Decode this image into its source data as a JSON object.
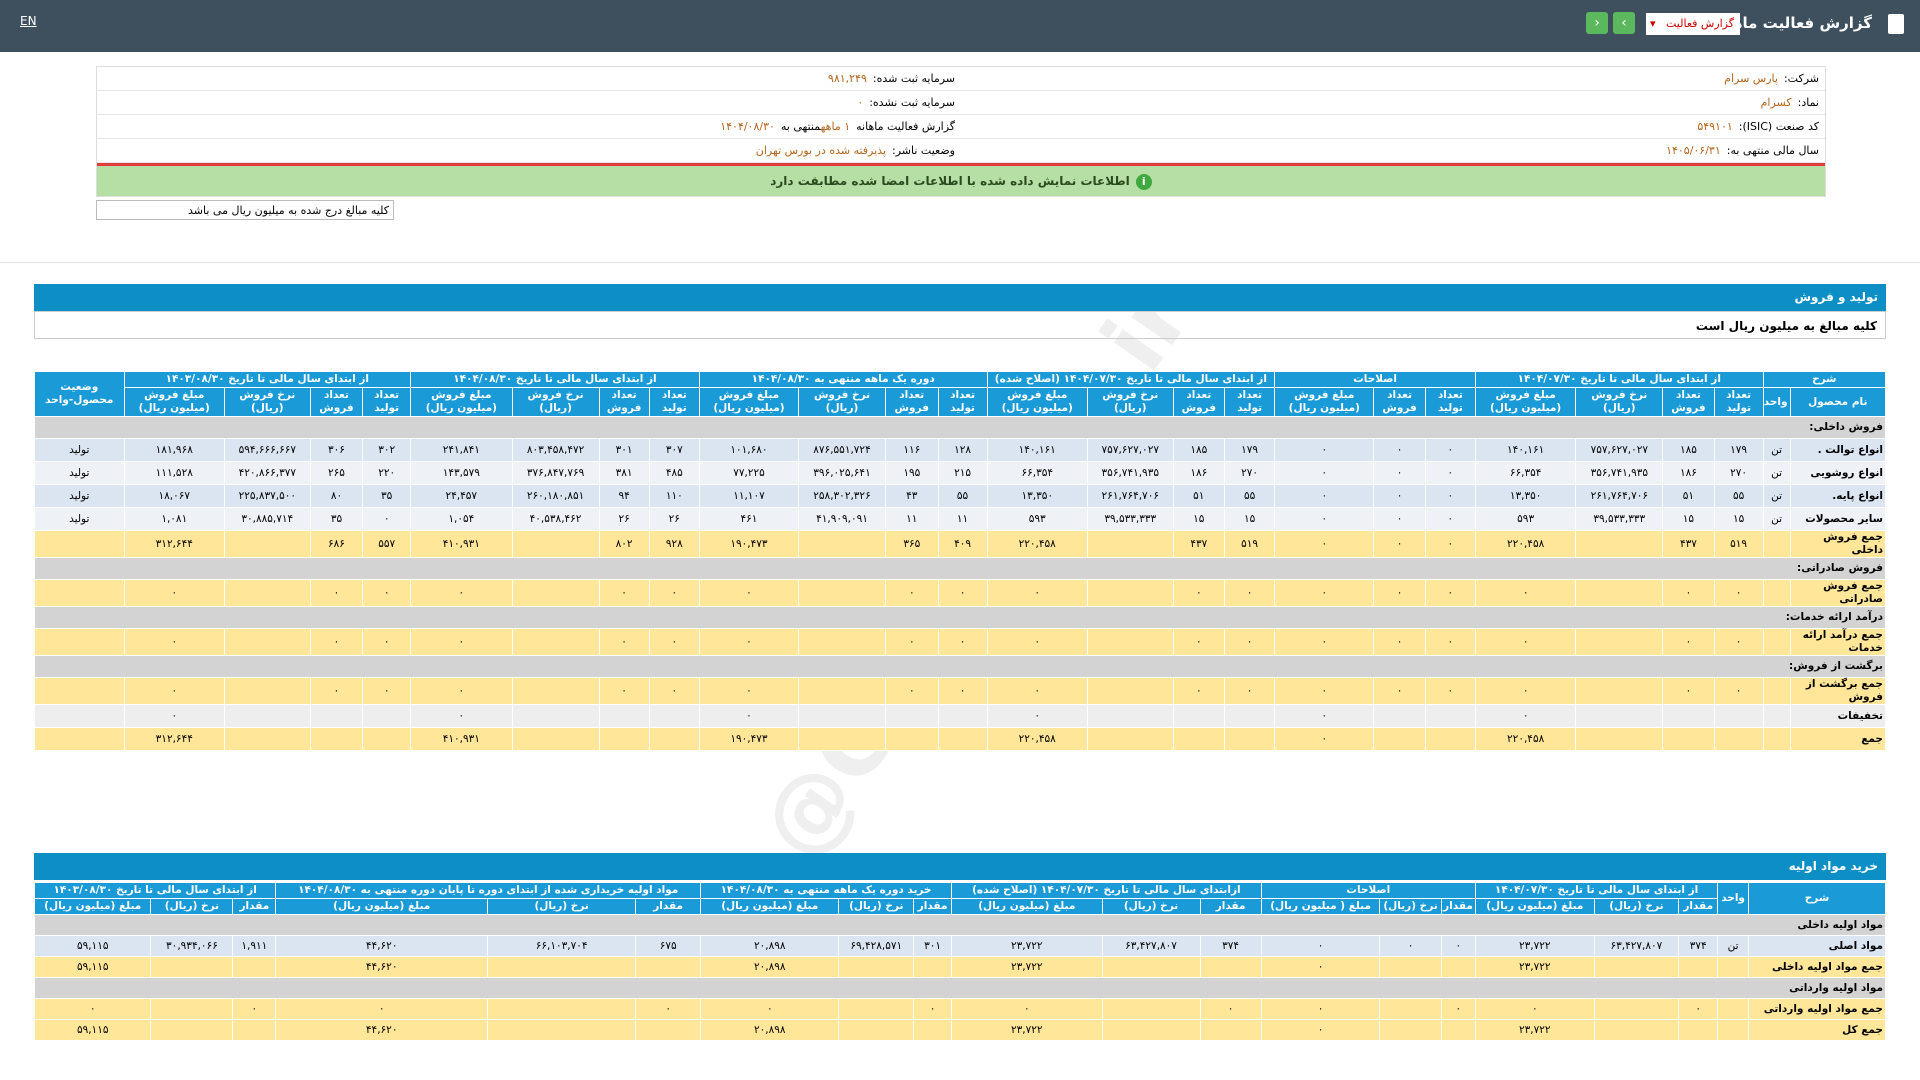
{
  "topbar": {
    "title": "گزارش فعالیت ماهانه",
    "dropdown": "گزارش فعالیت",
    "language": "EN"
  },
  "info": {
    "right": [
      {
        "label": "شرکت:",
        "value": "پارس سرام"
      },
      {
        "label": "نماد:",
        "value": "کسرام"
      },
      {
        "label": "کد صنعت (ISIC):",
        "value": "۵۴۹۱۰۱"
      },
      {
        "label": "سال مالی منتهی به:",
        "value": "۱۴۰۵/۰۶/۳۱"
      }
    ],
    "left": [
      {
        "label": "سرمایه ثبت شده:",
        "value": "۹۸۱,۲۴۹"
      },
      {
        "label": "سرمایه ثبت نشده:",
        "value": "۰"
      },
      {
        "label": "گزارش فعالیت ماهانه",
        "value": "۱ ماهه",
        "suffix": "منتهی به",
        "date": "۱۴۰۴/۰۸/۳۰"
      },
      {
        "label": "وضعیت ناشر:",
        "value": "پذیرفته شده در بورس تهران"
      }
    ]
  },
  "notice": "اطلاعات نمایش داده شده با اطلاعات امضا شده مطابقت دارد",
  "amount_note": "کلیه مبالغ درج شده به میلیون ریال می باشد",
  "watermark": "@Codal360.ir",
  "production": {
    "title": "تولید و فروش",
    "subtitle": "کلیه مبالغ به میلیون ریال است",
    "table": {
      "groups": [
        {
          "title": "شرح",
          "columns": [
            "نام محصول",
            "واحد"
          ]
        },
        {
          "title": "از ابتدای سال مالی تا تاریخ ۱۴۰۴/۰۷/۳۰",
          "columns": [
            "تعداد تولید",
            "تعداد فروش",
            "نرخ فروش (ریال)",
            "مبلغ فروش (میلیون ریال)"
          ]
        },
        {
          "title": "اصلاحات",
          "columns": [
            "تعداد تولید",
            "تعداد فروش",
            "مبلغ فروش (میلیون ریال)"
          ]
        },
        {
          "title": "از ابتدای سال مالی تا تاریخ ۱۴۰۴/۰۷/۳۰ (اصلاح شده)",
          "columns": [
            "تعداد تولید",
            "تعداد فروش",
            "نرخ فروش (ریال)",
            "مبلغ فروش (میلیون ریال)"
          ]
        },
        {
          "title": "دوره یک ماهه منتهی به ۱۴۰۴/۰۸/۳۰",
          "columns": [
            "تعداد تولید",
            "تعداد فروش",
            "نرخ فروش (ریال)",
            "مبلغ فروش (میلیون ریال)"
          ]
        },
        {
          "title": "از ابتدای سال مالی تا تاریخ ۱۴۰۴/۰۸/۳۰",
          "columns": [
            "تعداد تولید",
            "تعداد فروش",
            "نرخ فروش (ریال)",
            "مبلغ فروش (میلیون ریال)"
          ]
        },
        {
          "title": "از ابتدای سال مالی تا تاریخ ۱۴۰۳/۰۸/۳۰",
          "columns": [
            "تعداد تولید",
            "تعداد فروش",
            "نرخ فروش (ریال)",
            "مبلغ فروش (میلیون ریال)"
          ]
        },
        {
          "title": "وضعیت محصول-واحد"
        }
      ],
      "rows": [
        {
          "section": "فروش داخلی:"
        },
        {
          "color": "#dbe5f1",
          "cells": [
            "انواع توالت .",
            "تن",
            "۱۷۹",
            "۱۸۵",
            "۷۵۷,۶۲۷,۰۲۷",
            "۱۴۰,۱۶۱",
            "۰",
            "۰",
            "۰",
            "۱۷۹",
            "۱۸۵",
            "۷۵۷,۶۲۷,۰۲۷",
            "۱۴۰,۱۶۱",
            "۱۲۸",
            "۱۱۶",
            "۸۷۶,۵۵۱,۷۲۴",
            "۱۰۱,۶۸۰",
            "۳۰۷",
            "۳۰۱",
            "۸۰۳,۴۵۸,۴۷۲",
            "۲۴۱,۸۴۱",
            "۳۰۲",
            "۳۰۶",
            "۵۹۴,۶۶۶,۶۶۷",
            "۱۸۱,۹۶۸",
            "تولید"
          ]
        },
        {
          "color": "#eef2f7",
          "cells": [
            "انواع روشویی",
            "تن",
            "۲۷۰",
            "۱۸۶",
            "۳۵۶,۷۴۱,۹۳۵",
            "۶۶,۳۵۴",
            "۰",
            "۰",
            "۰",
            "۲۷۰",
            "۱۸۶",
            "۳۵۶,۷۴۱,۹۳۵",
            "۶۶,۳۵۴",
            "۲۱۵",
            "۱۹۵",
            "۳۹۶,۰۲۵,۶۴۱",
            "۷۷,۲۲۵",
            "۴۸۵",
            "۳۸۱",
            "۳۷۶,۸۴۷,۷۶۹",
            "۱۴۳,۵۷۹",
            "۲۲۰",
            "۲۶۵",
            "۴۲۰,۸۶۶,۳۷۷",
            "۱۱۱,۵۲۸",
            "تولید"
          ]
        },
        {
          "color": "#dbe5f1",
          "cells": [
            "انواع پایه.",
            "تن",
            "۵۵",
            "۵۱",
            "۲۶۱,۷۶۴,۷۰۶",
            "۱۳,۳۵۰",
            "۰",
            "۰",
            "۰",
            "۵۵",
            "۵۱",
            "۲۶۱,۷۶۴,۷۰۶",
            "۱۳,۳۵۰",
            "۵۵",
            "۴۳",
            "۲۵۸,۳۰۲,۳۲۶",
            "۱۱,۱۰۷",
            "۱۱۰",
            "۹۴",
            "۲۶۰,۱۸۰,۸۵۱",
            "۲۴,۴۵۷",
            "۳۵",
            "۸۰",
            "۲۲۵,۸۳۷,۵۰۰",
            "۱۸,۰۶۷",
            "تولید"
          ]
        },
        {
          "color": "#eef2f7",
          "cells": [
            "سایر محصولات",
            "تن",
            "۱۵",
            "۱۵",
            "۳۹,۵۳۳,۳۳۳",
            "۵۹۳",
            "۰",
            "۰",
            "۰",
            "۱۵",
            "۱۵",
            "۳۹,۵۳۳,۳۳۳",
            "۵۹۳",
            "۱۱",
            "۱۱",
            "۴۱,۹۰۹,۰۹۱",
            "۴۶۱",
            "۲۶",
            "۲۶",
            "۴۰,۵۳۸,۴۶۲",
            "۱,۰۵۴",
            "۰",
            "۳۵",
            "۳۰,۸۸۵,۷۱۴",
            "۱,۰۸۱",
            "تولید"
          ]
        },
        {
          "color": "#ffe699",
          "cells": [
            "جمع فروش داخلی",
            null,
            "۵۱۹",
            "۴۳۷",
            null,
            "۲۲۰,۴۵۸",
            "۰",
            "۰",
            "۰",
            "۵۱۹",
            "۴۳۷",
            null,
            "۲۲۰,۴۵۸",
            "۴۰۹",
            "۳۶۵",
            null,
            "۱۹۰,۴۷۳",
            "۹۲۸",
            "۸۰۲",
            null,
            "۴۱۰,۹۳۱",
            "۵۵۷",
            "۶۸۶",
            null,
            "۳۱۲,۶۴۴",
            null
          ]
        },
        {
          "section": "فروش صادراتی:"
        },
        {
          "color": "#ffe699",
          "cells": [
            "جمع فروش صادراتی",
            null,
            "۰",
            "۰",
            null,
            "۰",
            "۰",
            "۰",
            "۰",
            "۰",
            "۰",
            null,
            "۰",
            "۰",
            "۰",
            null,
            "۰",
            "۰",
            "۰",
            null,
            "۰",
            "۰",
            "۰",
            null,
            "۰",
            null
          ]
        },
        {
          "section": "درآمد ارائه خدمات:"
        },
        {
          "color": "#ffe699",
          "cells": [
            "جمع درآمد ارائه خدمات",
            null,
            "۰",
            "۰",
            null,
            "۰",
            "۰",
            "۰",
            "۰",
            "۰",
            "۰",
            null,
            "۰",
            "۰",
            "۰",
            null,
            "۰",
            "۰",
            "۰",
            null,
            "۰",
            "۰",
            "۰",
            null,
            "۰",
            null
          ]
        },
        {
          "section": "برگشت از فروش:"
        },
        {
          "color": "#ffe699",
          "cells": [
            "جمع برگشت از فروش",
            null,
            "۰",
            "۰",
            null,
            "۰",
            "۰",
            "۰",
            "۰",
            "۰",
            "۰",
            null,
            "۰",
            "۰",
            "۰",
            null,
            "۰",
            "۰",
            "۰",
            null,
            "۰",
            "۰",
            "۰",
            null,
            "۰",
            null
          ]
        },
        {
          "color": "#eeeeee",
          "cells": [
            "تخفیفات",
            null,
            null,
            null,
            null,
            "۰",
            null,
            null,
            "۰",
            null,
            null,
            null,
            "۰",
            null,
            null,
            null,
            "۰",
            null,
            null,
            null,
            "۰",
            null,
            null,
            null,
            "۰",
            null
          ]
        },
        {
          "color": "#ffe699",
          "cells": [
            "جمع",
            null,
            null,
            null,
            null,
            "۲۲۰,۴۵۸",
            null,
            null,
            "۰",
            null,
            null,
            null,
            "۲۲۰,۴۵۸",
            null,
            null,
            null,
            "۱۹۰,۴۷۳",
            null,
            null,
            null,
            "۴۱۰,۹۳۱",
            null,
            null,
            null,
            "۳۱۲,۶۴۴",
            null
          ]
        }
      ]
    }
  },
  "materials": {
    "title": "خرید مواد اولیه",
    "table": {
      "groups": [
        {
          "title": "شرح"
        },
        {
          "title": "واحد"
        },
        {
          "title": "از ابتدای سال مالی تا تاریخ ۱۴۰۴/۰۷/۳۰",
          "columns": [
            "مقدار",
            "نرخ (ریال)",
            "مبلغ (میلیون ریال)"
          ]
        },
        {
          "title": "اصلاحات",
          "columns": [
            "مقدار",
            "نرخ (ریال)",
            "مبلغ ( میلیون ریال)"
          ]
        },
        {
          "title": "ازابتدای سال مالی تا تاریخ ۱۴۰۴/۰۷/۳۰ (اصلاح شده)",
          "columns": [
            "مقدار",
            "نرخ (ریال)",
            "مبلغ (میلیون ریال)"
          ]
        },
        {
          "title": "خرید دوره یک ماهه منتهی به ۱۴۰۴/۰۸/۳۰",
          "columns": [
            "مقدار",
            "نرخ (ریال)",
            "مبلغ (میلیون ریال)"
          ]
        },
        {
          "title": "مواد اولیه خریداری شده از ابتدای دوره تا پایان دوره منتهی به ۱۴۰۴/۰۸/۳۰",
          "columns": [
            "مقدار",
            "نرخ (ریال)",
            "مبلغ (میلیون ریال)"
          ]
        },
        {
          "title": "از ابتدای سال مالی تا تاریخ ۱۴۰۳/۰۸/۳۰",
          "columns": [
            "مقدار",
            "نرخ (ریال)",
            "مبلغ (میلیون ریال)"
          ]
        }
      ],
      "rows": [
        {
          "section": "مواد اولیه داخلی"
        },
        {
          "color": "#dbe5f1",
          "cells": [
            "مواد اصلی",
            "تن",
            "۳۷۴",
            "۶۳,۴۲۷,۸۰۷",
            "۲۳,۷۲۲",
            "۰",
            "۰",
            "۰",
            "۳۷۴",
            "۶۳,۴۲۷,۸۰۷",
            "۲۳,۷۲۲",
            "۳۰۱",
            "۶۹,۴۲۸,۵۷۱",
            "۲۰,۸۹۸",
            "۶۷۵",
            "۶۶,۱۰۳,۷۰۴",
            "۴۴,۶۲۰",
            "۱,۹۱۱",
            "۳۰,۹۳۴,۰۶۶",
            "۵۹,۱۱۵"
          ]
        },
        {
          "color": "#ffe699",
          "cells": [
            "جمع مواد اولیه داخلی",
            null,
            null,
            null,
            "۲۳,۷۲۲",
            null,
            null,
            "۰",
            null,
            null,
            "۲۳,۷۲۲",
            null,
            null,
            "۲۰,۸۹۸",
            null,
            null,
            "۴۴,۶۲۰",
            null,
            null,
            "۵۹,۱۱۵"
          ]
        },
        {
          "section": "مواد اولیه وارداتی"
        },
        {
          "color": "#ffe699",
          "cells": [
            "جمع مواد اولیه وارداتی",
            null,
            "۰",
            null,
            "۰",
            "۰",
            null,
            "۰",
            "۰",
            null,
            "۰",
            "۰",
            null,
            "۰",
            "۰",
            null,
            "۰",
            "۰",
            null,
            "۰"
          ]
        },
        {
          "color": "#ffe699",
          "cells": [
            "جمع کل",
            null,
            null,
            null,
            "۲۳,۷۲۲",
            null,
            null,
            "۰",
            null,
            null,
            "۲۳,۷۲۲",
            null,
            null,
            "۲۰,۸۹۸",
            null,
            null,
            "۴۴,۶۲۰",
            null,
            null,
            "۵۹,۱۱۵"
          ]
        }
      ]
    }
  }
}
